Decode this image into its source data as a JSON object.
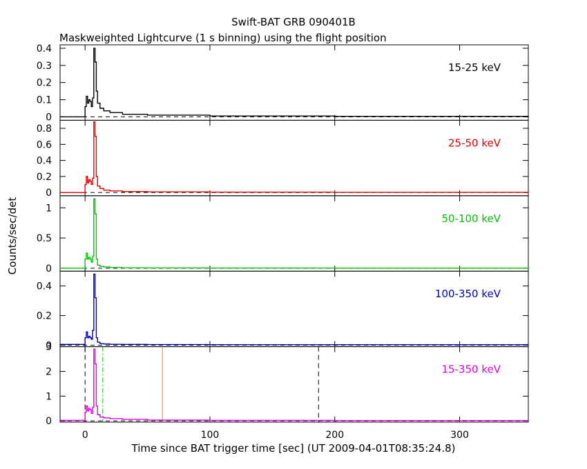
{
  "title": "Swift-BAT GRB 090401B",
  "subtitle": "Maskweighted Lightcurve (1 s binning) using the flight position",
  "ylabel": "Counts/sec/det",
  "xlabel": "Time since BAT trigger time [sec] (UT 2009-04-01T08:35:24.8)",
  "chart_data": [
    {
      "type": "line",
      "band": "15-25 keV",
      "color": "#000000",
      "ylim": [
        -0.02,
        0.42
      ],
      "yticks": [
        0,
        0.1,
        0.2,
        0.3,
        0.4
      ],
      "ytick_labels": [
        "0",
        "0.1",
        "0.2",
        "0.3",
        "0.4"
      ],
      "xlim": [
        -20,
        355
      ],
      "x": [
        -20,
        -1,
        0,
        1,
        2,
        3,
        4,
        5,
        6,
        7,
        8,
        9,
        10,
        12,
        15,
        20,
        30,
        50,
        100,
        200,
        355
      ],
      "y": [
        0,
        0,
        0.06,
        0.12,
        0.08,
        0.1,
        0.09,
        0.06,
        0.11,
        0.4,
        0.32,
        0.15,
        0.08,
        0.05,
        0.035,
        0.025,
        0.015,
        0.01,
        0.005,
        0.003,
        0.002
      ]
    },
    {
      "type": "line",
      "band": "25-50 keV",
      "color": "#e00000",
      "ylim": [
        -0.04,
        0.9
      ],
      "yticks": [
        0,
        0.2,
        0.4,
        0.6,
        0.8
      ],
      "ytick_labels": [
        "0",
        "0.2",
        "0.4",
        "0.6",
        "0.8"
      ],
      "xlim": [
        -20,
        355
      ],
      "x": [
        -20,
        -1,
        0,
        1,
        2,
        3,
        4,
        5,
        6,
        7,
        8,
        9,
        10,
        12,
        15,
        20,
        30,
        50,
        100,
        200,
        355
      ],
      "y": [
        0,
        0,
        0.1,
        0.2,
        0.12,
        0.16,
        0.14,
        0.1,
        0.18,
        0.88,
        0.7,
        0.2,
        0.08,
        0.05,
        0.03,
        0.02,
        0.012,
        0.008,
        0.005,
        0.003,
        0.002
      ]
    },
    {
      "type": "line",
      "band": "50-100 keV",
      "color": "#00c000",
      "ylim": [
        -0.05,
        1.2
      ],
      "yticks": [
        0,
        0.5,
        1
      ],
      "ytick_labels": [
        "0",
        "0.5",
        "1"
      ],
      "xlim": [
        -20,
        355
      ],
      "x": [
        -20,
        -1,
        0,
        1,
        2,
        3,
        4,
        5,
        6,
        7,
        8,
        9,
        10,
        12,
        15,
        20,
        30,
        50,
        100,
        200,
        355
      ],
      "y": [
        0,
        0,
        0.15,
        0.25,
        0.15,
        0.18,
        0.15,
        0.1,
        0.2,
        1.15,
        0.9,
        0.15,
        0.05,
        0.03,
        0.02,
        0.01,
        0.006,
        0.004,
        0.003,
        0.002,
        0.001
      ]
    },
    {
      "type": "line",
      "band": "100-350 keV",
      "color": "#0000b0",
      "ylim": [
        -0.01,
        0.5
      ],
      "yticks": [
        0,
        0.2,
        0.4
      ],
      "ytick_labels": [
        "0",
        "0.2",
        "0.4"
      ],
      "xlim": [
        -20,
        355
      ],
      "x": [
        -20,
        -1,
        0,
        1,
        2,
        3,
        4,
        5,
        6,
        7,
        8,
        9,
        10,
        12,
        15,
        20,
        30,
        50,
        100,
        200,
        355
      ],
      "y": [
        0.005,
        0.005,
        0.05,
        0.09,
        0.05,
        0.06,
        0.05,
        0.04,
        0.1,
        0.48,
        0.32,
        0.05,
        0.02,
        0.01,
        0.008,
        0.006,
        0.005,
        0.004,
        0.003,
        0.003,
        0.003
      ]
    },
    {
      "type": "line",
      "band": "15-350 keV",
      "color": "#e000e0",
      "ylim": [
        -0.05,
        3.0
      ],
      "yticks": [
        0,
        1,
        2,
        3
      ],
      "ytick_labels": [
        "0",
        "1",
        "2",
        "3"
      ],
      "xlim": [
        -20,
        355
      ],
      "x": [
        -20,
        -1,
        0,
        1,
        2,
        3,
        4,
        5,
        6,
        7,
        8,
        9,
        10,
        12,
        15,
        20,
        30,
        50,
        100,
        200,
        355
      ],
      "y": [
        0.02,
        0.02,
        0.35,
        0.6,
        0.4,
        0.5,
        0.45,
        0.3,
        0.55,
        2.9,
        2.3,
        0.6,
        0.25,
        0.15,
        0.12,
        0.09,
        0.06,
        0.03,
        0.02,
        0.015,
        0.012
      ],
      "vlines": [
        {
          "x": 0,
          "style": "dashed",
          "color": "#000000"
        },
        {
          "x": 14.2,
          "style": "dashdot",
          "color": "#00c000"
        },
        {
          "x": 62,
          "style": "solid",
          "color": "#ff8000"
        },
        {
          "x": 187,
          "style": "dashed",
          "color": "#000000"
        }
      ]
    }
  ],
  "xticks": [
    0,
    100,
    200,
    300
  ],
  "xtick_labels": [
    "0",
    "100",
    "200",
    "300"
  ]
}
